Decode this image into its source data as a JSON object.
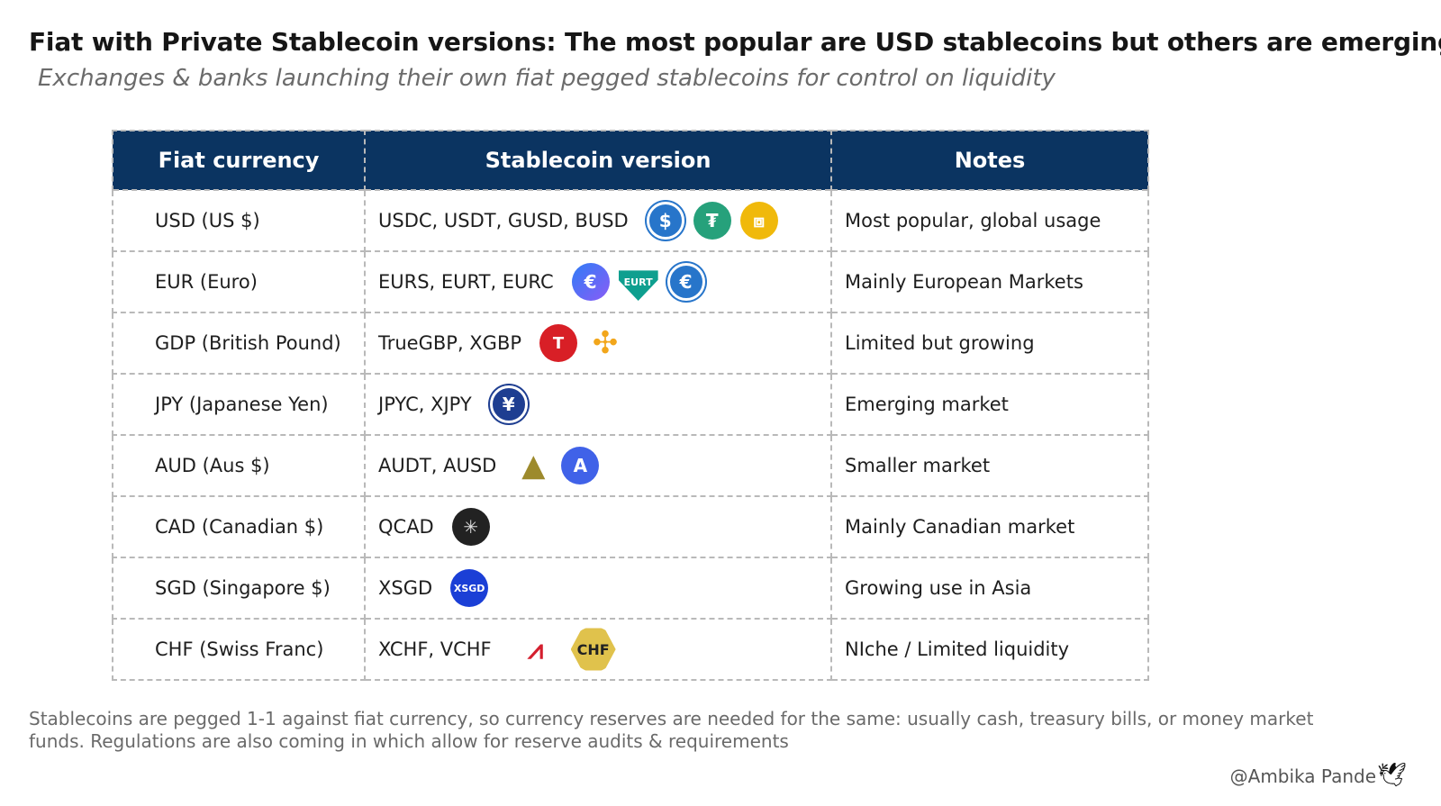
{
  "title": "Fiat with Private Stablecoin versions: The most popular are USD stablecoins but others are emerging",
  "subtitle": "Exchanges & banks launching their own fiat pegged stablecoins for control on liquidity",
  "table": {
    "headers": [
      "Fiat currency",
      "Stablecoin version",
      "Notes"
    ],
    "rows": [
      {
        "fiat": "USD (US $)",
        "stable": "USDC, USDT, GUSD, BUSD",
        "note": "Most popular, global usage",
        "coins": [
          {
            "cls": "c-usdc",
            "glyph": "$",
            "icon": "usdc-icon"
          },
          {
            "cls": "c-usdt",
            "glyph": "₮",
            "icon": "tether-icon"
          },
          {
            "cls": "c-busd",
            "glyph": "⧈",
            "icon": "busd-icon"
          }
        ]
      },
      {
        "fiat": "EUR (Euro)",
        "stable": "EURS, EURT, EURC",
        "note": "Mainly European Markets",
        "coins": [
          {
            "cls": "c-eurs",
            "glyph": "€",
            "icon": "eurs-icon"
          },
          {
            "cls": "c-eurt",
            "glyph": "EURT",
            "icon": "eurt-icon"
          },
          {
            "cls": "c-eurc",
            "glyph": "€",
            "icon": "eurc-icon"
          }
        ]
      },
      {
        "fiat": "GDP (British Pound)",
        "stable": "TrueGBP, XGBP",
        "note": "Limited but growing",
        "coins": [
          {
            "cls": "c-tgbp",
            "glyph": "T",
            "icon": "truegbp-icon"
          },
          {
            "cls": "c-xgbp",
            "glyph": "✣",
            "icon": "xgbp-icon"
          }
        ]
      },
      {
        "fiat": "JPY (Japanese Yen)",
        "stable": "JPYC, XJPY",
        "note": "Emerging market",
        "coins": [
          {
            "cls": "c-jpyc",
            "glyph": "¥",
            "icon": "jpyc-icon"
          }
        ]
      },
      {
        "fiat": "AUD (Aus $)",
        "stable": "AUDT, AUSD",
        "note": "Smaller market",
        "coins": [
          {
            "cls": "c-audt",
            "glyph": "▲",
            "icon": "audt-icon"
          },
          {
            "cls": "c-ausd",
            "glyph": "A",
            "icon": "ausd-icon"
          }
        ]
      },
      {
        "fiat": "CAD (Canadian $)",
        "stable": "QCAD",
        "note": "Mainly Canadian market",
        "coins": [
          {
            "cls": "c-qcad",
            "glyph": "✳",
            "icon": "qcad-maple-leaf-icon"
          }
        ]
      },
      {
        "fiat": "SGD (Singapore $)",
        "stable": "XSGD",
        "note": "Growing use in Asia",
        "coins": [
          {
            "cls": "c-xsgd",
            "glyph": "XSGD",
            "icon": "xsgd-icon"
          }
        ]
      },
      {
        "fiat": "CHF (Swiss Franc)",
        "stable": "XCHF, VCHF",
        "note": "NIche / Limited liquidity",
        "coins": [
          {
            "cls": "c-xchf",
            "glyph": "⩘",
            "icon": "xchf-icon"
          },
          {
            "cls": "c-vchf",
            "glyph": "CHF",
            "icon": "vchf-icon"
          }
        ]
      }
    ]
  },
  "footnote": "Stablecoins are pegged 1-1 against fiat currency, so currency reserves are needed for the same: usually cash, treasury bills, or money market funds. Regulations are also coming in which allow for reserve audits & requirements",
  "signature": "@Ambika Pande",
  "signature_icon": "bird-icon",
  "colors": {
    "header_bg": "#0b3461",
    "header_text": "#ffffff",
    "border": "#b9b9b9"
  }
}
